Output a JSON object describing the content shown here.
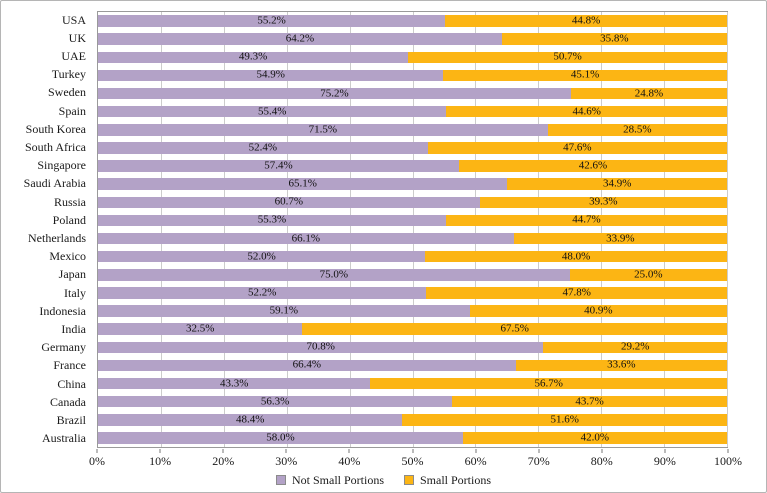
{
  "chart_data": {
    "type": "bar",
    "orientation": "horizontal",
    "stacked": true,
    "title": "",
    "xlabel": "",
    "ylabel": "",
    "xlim": [
      0,
      100
    ],
    "grid": true,
    "legend_position": "bottom",
    "x_ticks": [
      "0%",
      "10%",
      "20%",
      "30%",
      "40%",
      "50%",
      "60%",
      "70%",
      "80%",
      "90%",
      "100%"
    ],
    "categories": [
      "USA",
      "UK",
      "UAE",
      "Turkey",
      "Sweden",
      "Spain",
      "South Korea",
      "South Africa",
      "Singapore",
      "Saudi Arabia",
      "Russia",
      "Poland",
      "Netherlands",
      "Mexico",
      "Japan",
      "Italy",
      "Indonesia",
      "India",
      "Germany",
      "France",
      "China",
      "Canada",
      "Brazil",
      "Australia"
    ],
    "series": [
      {
        "name": "Not Small Portions",
        "color": "#b3a2c7",
        "values": [
          55.2,
          64.2,
          49.3,
          54.9,
          75.2,
          55.4,
          71.5,
          52.4,
          57.4,
          65.1,
          60.7,
          55.3,
          66.1,
          52.0,
          75.0,
          52.2,
          59.1,
          32.5,
          70.8,
          66.4,
          43.3,
          56.3,
          48.4,
          58.0
        ]
      },
      {
        "name": "Small Portions",
        "color": "#fcb514",
        "values": [
          44.8,
          35.8,
          50.7,
          45.1,
          24.8,
          44.6,
          28.5,
          47.6,
          42.6,
          34.9,
          39.3,
          44.7,
          33.9,
          48.0,
          25.0,
          47.8,
          40.9,
          67.5,
          29.2,
          33.6,
          56.7,
          43.7,
          51.6,
          42.0
        ]
      }
    ],
    "grid_color": "#cccccc",
    "plot_border_color": "#9a9a9a"
  }
}
